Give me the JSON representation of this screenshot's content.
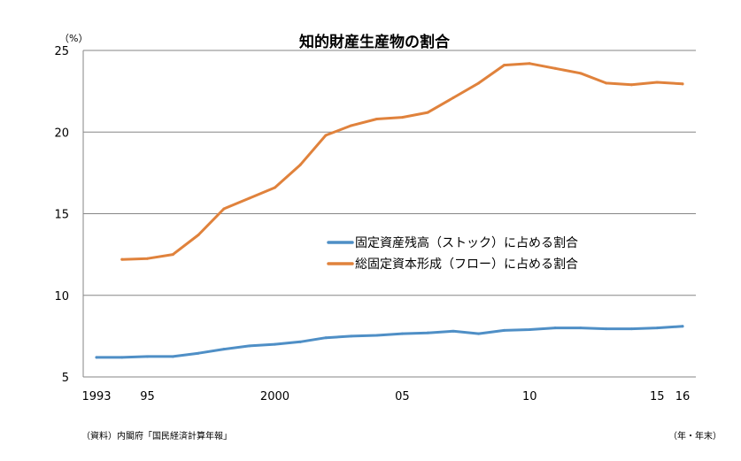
{
  "chart_data": {
    "type": "line",
    "title": "知的財産生産物の割合",
    "y_unit": "（%）",
    "x_unit": "（年・年末）",
    "source": "（資料）内閣府「国民経済計算年報」",
    "x_range": [
      1993,
      2016
    ],
    "ylim": [
      5,
      25
    ],
    "y_ticks": [
      5,
      10,
      15,
      20,
      25
    ],
    "x_tick_labels": [
      {
        "year": 1993,
        "label": "1993"
      },
      {
        "year": 1995,
        "label": "95"
      },
      {
        "year": 2000,
        "label": "2000"
      },
      {
        "year": 2005,
        "label": "05"
      },
      {
        "year": 2010,
        "label": "10"
      },
      {
        "year": 2015,
        "label": "15"
      },
      {
        "year": 2016,
        "label": "16"
      }
    ],
    "grid": true,
    "legend_position": "center-right",
    "series": [
      {
        "name": "固定資産残高（ストック）に占める割合",
        "color": "#4f8fc6",
        "x": [
          1993,
          1994,
          1995,
          1996,
          1997,
          1998,
          1999,
          2000,
          2001,
          2002,
          2003,
          2004,
          2005,
          2006,
          2007,
          2008,
          2009,
          2010,
          2011,
          2012,
          2013,
          2014,
          2015,
          2016
        ],
        "values": [
          6.2,
          6.2,
          6.25,
          6.25,
          6.45,
          6.7,
          6.9,
          7.0,
          7.15,
          7.4,
          7.5,
          7.55,
          7.65,
          7.7,
          7.8,
          7.65,
          7.85,
          7.9,
          8.0,
          8.0,
          7.95,
          7.95,
          8.0,
          8.1
        ]
      },
      {
        "name": "総固定資本形成（フロー）に占める割合",
        "color": "#e0823c",
        "x": [
          1994,
          1995,
          1996,
          1997,
          1998,
          1999,
          2000,
          2001,
          2002,
          2003,
          2004,
          2005,
          2006,
          2007,
          2008,
          2009,
          2010,
          2011,
          2012,
          2013,
          2014,
          2015,
          2016
        ],
        "values": [
          12.2,
          12.25,
          12.5,
          13.7,
          15.3,
          15.95,
          16.6,
          18.0,
          19.8,
          20.4,
          20.8,
          20.9,
          21.2,
          22.1,
          23.0,
          24.1,
          24.2,
          23.9,
          23.6,
          23.0,
          22.9,
          23.05,
          22.95
        ]
      }
    ]
  }
}
